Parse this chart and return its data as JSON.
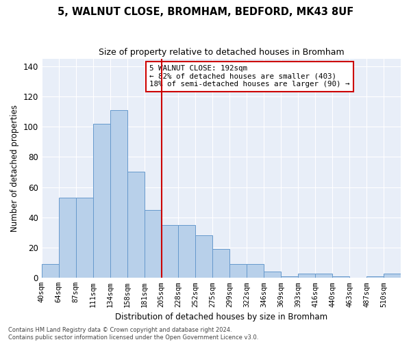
{
  "title": "5, WALNUT CLOSE, BROMHAM, BEDFORD, MK43 8UF",
  "subtitle": "Size of property relative to detached houses in Bromham",
  "xlabel": "Distribution of detached houses by size in Bromham",
  "ylabel": "Number of detached properties",
  "bar_color": "#b8d0ea",
  "bar_edge_color": "#6699cc",
  "background_color": "#e8eef8",
  "grid_color": "#ffffff",
  "bin_labels": [
    "40sqm",
    "64sqm",
    "87sqm",
    "111sqm",
    "134sqm",
    "158sqm",
    "181sqm",
    "205sqm",
    "228sqm",
    "252sqm",
    "275sqm",
    "299sqm",
    "322sqm",
    "346sqm",
    "369sqm",
    "393sqm",
    "416sqm",
    "440sqm",
    "463sqm",
    "487sqm",
    "510sqm"
  ],
  "bar_values": [
    9,
    53,
    53,
    102,
    111,
    70,
    45,
    35,
    35,
    28,
    19,
    9,
    9,
    4,
    1,
    3,
    3,
    1,
    0,
    1,
    3
  ],
  "vline_x": 7,
  "vline_color": "#cc0000",
  "ylim": [
    0,
    145
  ],
  "annotation_text": "5 WALNUT CLOSE: 192sqm\n← 82% of detached houses are smaller (403)\n18% of semi-detached houses are larger (90) →",
  "annotation_box_color": "#ffffff",
  "annotation_box_edge": "#cc0000",
  "footer_line1": "Contains HM Land Registry data © Crown copyright and database right 2024.",
  "footer_line2": "Contains public sector information licensed under the Open Government Licence v3.0."
}
